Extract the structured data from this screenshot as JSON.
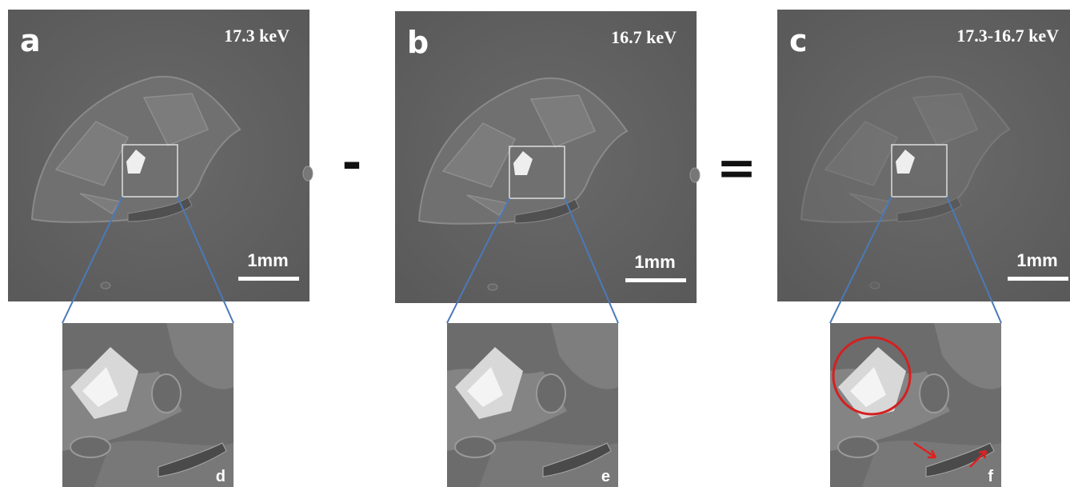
{
  "panels": [
    {
      "label": "a",
      "energy": "17.3 keV",
      "scale_bar": "1mm",
      "inset_label": "d"
    },
    {
      "label": "b",
      "energy": "16.7 keV",
      "scale_bar": "1mm",
      "inset_label": "e"
    },
    {
      "label": "c",
      "energy": "17.3-16.7 keV",
      "scale_bar": "1mm",
      "inset_label": "f"
    }
  ],
  "operators": [
    "-",
    "="
  ]
}
